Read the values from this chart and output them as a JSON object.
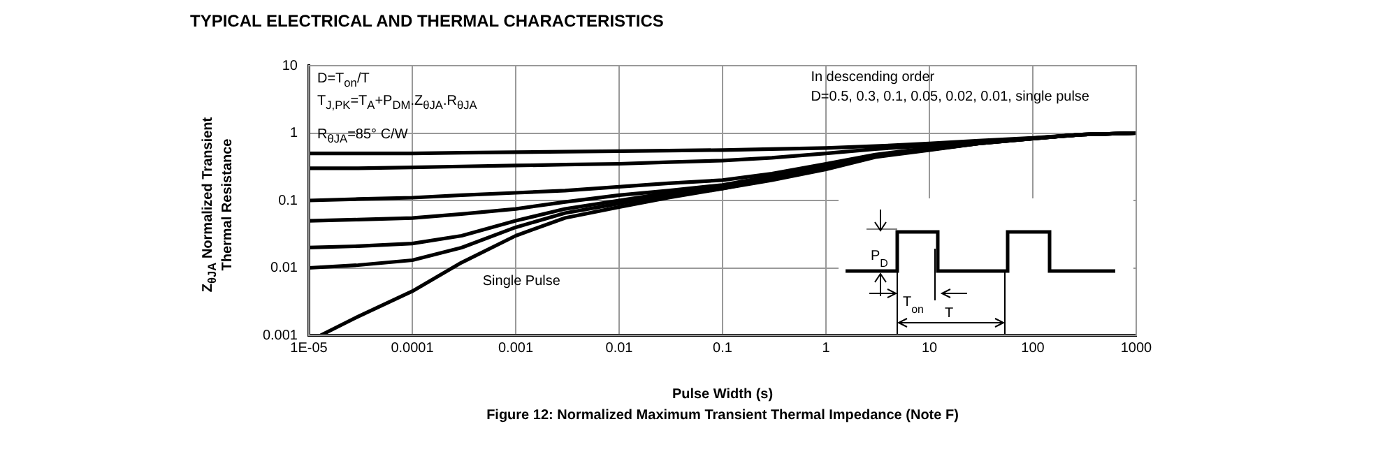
{
  "chart_data": {
    "type": "line",
    "title": "TYPICAL ELECTRICAL AND THERMAL CHARACTERISTICS",
    "xlabel": "Pulse Width (s)",
    "ylabel": "Z$_{θJA}$ Normalized Transient Thermal Resistance",
    "x": [
      1e-05,
      3e-05,
      0.0001,
      0.0003,
      0.001,
      0.003,
      0.01,
      0.03,
      0.1,
      0.3,
      1,
      3,
      10,
      30,
      100,
      300,
      1000
    ],
    "series": [
      {
        "color": "#000000",
        "values": [
          0.5,
          0.5,
          0.5,
          0.51,
          0.52,
          0.53,
          0.54,
          0.55,
          0.56,
          0.58,
          0.6,
          0.64,
          0.7,
          0.77,
          0.85,
          0.95,
          1
        ]
      },
      {
        "color": "#000000",
        "values": [
          0.3,
          0.3,
          0.31,
          0.32,
          0.33,
          0.34,
          0.35,
          0.37,
          0.39,
          0.43,
          0.5,
          0.58,
          0.65,
          0.74,
          0.84,
          0.95,
          1
        ]
      },
      {
        "color": "#000000",
        "values": [
          0.1,
          0.105,
          0.11,
          0.12,
          0.13,
          0.14,
          0.16,
          0.18,
          0.2,
          0.25,
          0.35,
          0.48,
          0.6,
          0.72,
          0.84,
          0.95,
          1
        ]
      },
      {
        "color": "#000000",
        "values": [
          0.05,
          0.052,
          0.055,
          0.063,
          0.075,
          0.095,
          0.12,
          0.14,
          0.17,
          0.23,
          0.32,
          0.46,
          0.58,
          0.71,
          0.83,
          0.95,
          1
        ]
      },
      {
        "color": "#000000",
        "values": [
          0.02,
          0.021,
          0.023,
          0.03,
          0.05,
          0.075,
          0.1,
          0.13,
          0.16,
          0.22,
          0.3,
          0.45,
          0.57,
          0.7,
          0.83,
          0.95,
          1
        ]
      },
      {
        "color": "#000000",
        "values": [
          0.01,
          0.011,
          0.013,
          0.02,
          0.04,
          0.065,
          0.09,
          0.12,
          0.15,
          0.21,
          0.3,
          0.45,
          0.57,
          0.7,
          0.83,
          0.95,
          1
        ]
      },
      {
        "color": "#000000",
        "x": [
          1.3e-05,
          3e-05,
          0.0001,
          0.0003,
          0.001,
          0.003,
          0.01,
          0.03,
          0.1,
          0.3,
          1,
          3,
          10,
          30,
          100,
          300,
          1000
        ],
        "values": [
          0.001,
          0.0019,
          0.0045,
          0.012,
          0.03,
          0.055,
          0.08,
          0.11,
          0.15,
          0.2,
          0.29,
          0.44,
          0.56,
          0.7,
          0.83,
          0.95,
          1
        ]
      }
    ],
    "xlim": [
      1e-05,
      1000
    ],
    "ylim": [
      0.001,
      10
    ],
    "xticks": [
      {
        "value": 1e-05,
        "label": "1E-05"
      },
      0.0001,
      0.001,
      0.01,
      0.1,
      1,
      10,
      100,
      1000
    ],
    "yticks": [
      0.001,
      0.01,
      0.1,
      1,
      10
    ],
    "log": "xy",
    "grid": true,
    "marker": "none",
    "line_style": "solid",
    "annotations": [
      "D=T$_{on}$/T",
      "T$_{J,PK}$=T$_{A}$+P$_{DM}$.Z$_{θJA}$.R$_{θJA}$",
      "R$_{θJA}$=85° C/W",
      "In descending order",
      "D=0.5, 0.3, 0.1, 0.05, 0.02, 0.01, single pulse",
      "Single Pulse",
      "P$_{D}$",
      "T$_{on}$",
      "T",
      "Figure 12: Normalized Maximum Transient Thermal Impedance (Note F)"
    ]
  }
}
